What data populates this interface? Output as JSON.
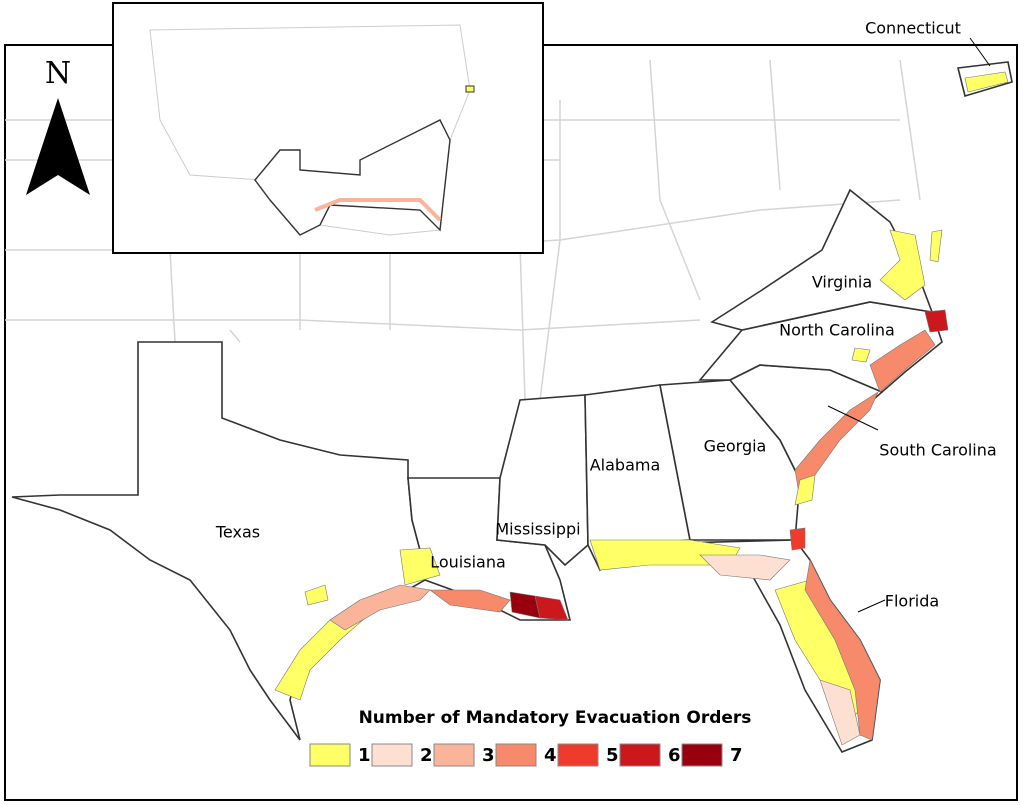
{
  "north": "N",
  "state_labels": [
    "Connecticut",
    "Virginia",
    "North Carolina",
    "South Carolina",
    "Georgia",
    "Alabama",
    "Mississippi",
    "Louisiana",
    "Texas",
    "Florida"
  ],
  "legend": {
    "title": "Number of Mandatory Evacuation Orders",
    "items": [
      {
        "label": 1,
        "color": "#ffff66"
      },
      {
        "label": 2,
        "color": "#fde0d2"
      },
      {
        "label": 3,
        "color": "#f9b49a"
      },
      {
        "label": 4,
        "color": "#f68a6a"
      },
      {
        "label": 5,
        "color": "#ef3b2c"
      },
      {
        "label": 6,
        "color": "#cb181d"
      },
      {
        "label": 7,
        "color": "#99000d"
      }
    ]
  }
}
